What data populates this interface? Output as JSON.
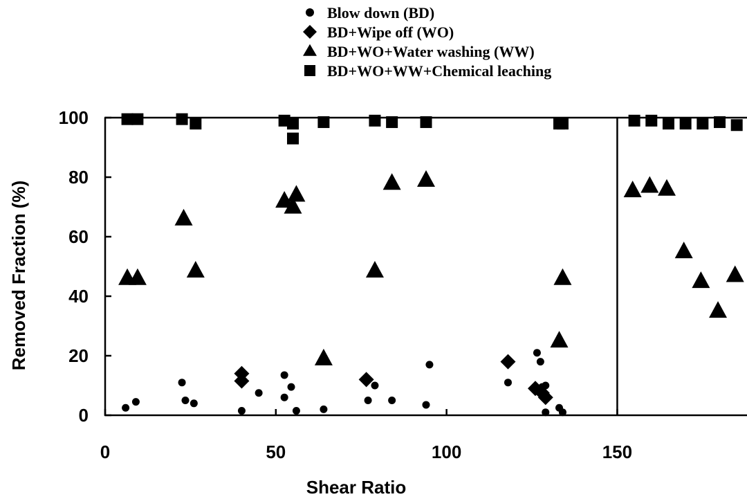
{
  "chart_data": {
    "type": "scatter",
    "title": "",
    "xlabel": "Shear Ratio",
    "ylabel": "Removed Fraction (%)",
    "xlim": [
      0,
      188
    ],
    "ylim": [
      0,
      100
    ],
    "x_ticks": [
      0,
      50,
      100,
      150
    ],
    "y_ticks": [
      0,
      20,
      40,
      60,
      80,
      100
    ],
    "x_tick_labels": [
      "0",
      "50",
      "100",
      "150"
    ],
    "y_tick_labels": [
      "0",
      "20",
      "40",
      "60",
      "80",
      "100"
    ],
    "grid": false,
    "legend_position": "top-center",
    "divider_x": 150,
    "series": [
      {
        "name": "Blow down (BD)",
        "marker": "circle",
        "points": [
          [
            6,
            2.5
          ],
          [
            9,
            4.5
          ],
          [
            22.5,
            11
          ],
          [
            23.5,
            5
          ],
          [
            26,
            4
          ],
          [
            40,
            1.5
          ],
          [
            45,
            7.5
          ],
          [
            52.5,
            13.5
          ],
          [
            52.5,
            6
          ],
          [
            54.5,
            9.5
          ],
          [
            56,
            1.5
          ],
          [
            64,
            2
          ],
          [
            77,
            5
          ],
          [
            79,
            10
          ],
          [
            84,
            5
          ],
          [
            94,
            3.5
          ],
          [
            95,
            17
          ],
          [
            118,
            11
          ],
          [
            126.5,
            21
          ],
          [
            127.5,
            18
          ],
          [
            128,
            9.5
          ],
          [
            129,
            10
          ],
          [
            129,
            1
          ],
          [
            133,
            2.5
          ],
          [
            134,
            1
          ]
        ]
      },
      {
        "name": "BD+Wipe off (WO)",
        "marker": "diamond",
        "points": [
          [
            40,
            14
          ],
          [
            40,
            11.5
          ],
          [
            76.5,
            12
          ],
          [
            118,
            18
          ],
          [
            126,
            9
          ],
          [
            128,
            7.5
          ],
          [
            129,
            6
          ]
        ]
      },
      {
        "name": "BD+WO+Water washing (WW)",
        "marker": "triangle",
        "points": [
          [
            6.5,
            46
          ],
          [
            9.5,
            46
          ],
          [
            23,
            66
          ],
          [
            26.5,
            48.5
          ],
          [
            52.5,
            72
          ],
          [
            55,
            70
          ],
          [
            56,
            74
          ],
          [
            64,
            19
          ],
          [
            79,
            48.5
          ],
          [
            84,
            78
          ],
          [
            94,
            79
          ],
          [
            133,
            25
          ],
          [
            134,
            46
          ],
          [
            154.5,
            75.5
          ],
          [
            159.5,
            77
          ],
          [
            164.5,
            76
          ],
          [
            169.5,
            55
          ],
          [
            174.5,
            45
          ],
          [
            179.5,
            35
          ],
          [
            184.5,
            47
          ]
        ]
      },
      {
        "name": "BD+WO+WW+Chemical leaching",
        "marker": "square",
        "points": [
          [
            6.5,
            99.5
          ],
          [
            9.5,
            99.5
          ],
          [
            22.5,
            99.5
          ],
          [
            26.5,
            98
          ],
          [
            52.5,
            99
          ],
          [
            55,
            98
          ],
          [
            55,
            93
          ],
          [
            64,
            98.5
          ],
          [
            79,
            99
          ],
          [
            84,
            98.5
          ],
          [
            94,
            98.5
          ],
          [
            133,
            98
          ],
          [
            134,
            98
          ],
          [
            155,
            99
          ],
          [
            160,
            99
          ],
          [
            165,
            98
          ],
          [
            170,
            98
          ],
          [
            175,
            98
          ],
          [
            180,
            98.5
          ],
          [
            185,
            97.5
          ]
        ]
      }
    ]
  }
}
